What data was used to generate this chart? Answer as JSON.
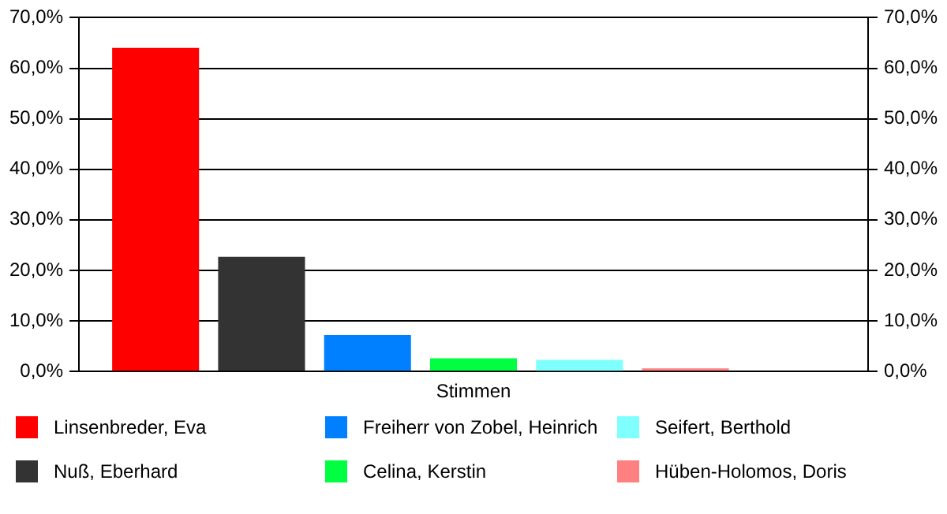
{
  "chart_data": {
    "type": "bar",
    "categories": [
      "Stimmen"
    ],
    "series": [
      {
        "name": "Linsenbreder, Eva",
        "color": "#ff0000",
        "values": [
          64.0
        ]
      },
      {
        "name": "Nuß, Eberhard",
        "color": "#333333",
        "values": [
          22.7
        ]
      },
      {
        "name": "Freiherr von Zobel, Heinrich",
        "color": "#0080ff",
        "values": [
          7.2
        ]
      },
      {
        "name": "Celina, Kerstin",
        "color": "#00ff40",
        "values": [
          2.6
        ]
      },
      {
        "name": "Seifert, Berthold",
        "color": "#80ffff",
        "values": [
          2.3
        ]
      },
      {
        "name": "Hüben-Holomos, Doris",
        "color": "#ff8080",
        "values": [
          0.2
        ]
      }
    ],
    "ylim": [
      0,
      70
    ],
    "yticks": [
      {
        "value": 0,
        "label": "0,0%"
      },
      {
        "value": 10,
        "label": "10,0%"
      },
      {
        "value": 20,
        "label": "20,0%"
      },
      {
        "value": 30,
        "label": "30,0%"
      },
      {
        "value": 40,
        "label": "40,0%"
      },
      {
        "value": 50,
        "label": "50,0%"
      },
      {
        "value": 60,
        "label": "60,0%"
      },
      {
        "value": 70,
        "label": "70,0%"
      }
    ],
    "grid": "y",
    "legend": "bottom"
  }
}
